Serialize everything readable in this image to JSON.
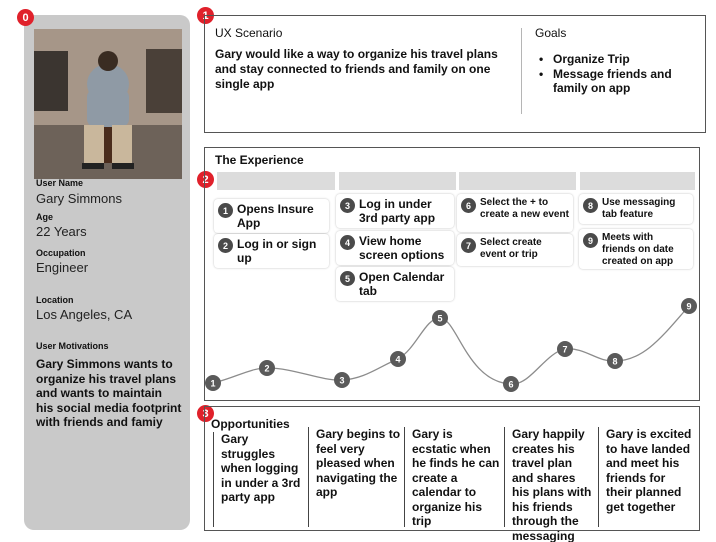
{
  "badges": {
    "persona": "0",
    "scenario": "1",
    "experience": "2",
    "opportunities": "3"
  },
  "persona": {
    "photo_alt": "persona-photo",
    "user_name_label": "User Name",
    "user_name": "Gary Simmons",
    "age_label": "Age",
    "age": "22 Years",
    "occupation_label": "Occupation",
    "occupation": "Engineer",
    "location_label": "Location",
    "location": "Los Angeles, CA",
    "motivations_label": "User Motivations",
    "motivations": "Gary Simmons wants to organize his travel plans and wants to maintain his social media footprint with friends and famiy"
  },
  "scenario": {
    "title": "UX Scenario",
    "text": "Gary would like a way to organize his travel plans and stay connected to friends and family on one single app",
    "goals_title": "Goals",
    "goals": [
      "Organize Trip",
      "Message friends and family on app"
    ]
  },
  "experience": {
    "title": "The Experience",
    "steps": [
      {
        "num": "1",
        "text": "Opens Insure App"
      },
      {
        "num": "2",
        "text": "Log in or sign up"
      },
      {
        "num": "3",
        "text": "Log in under 3rd party app"
      },
      {
        "num": "4",
        "text": "View home screen options"
      },
      {
        "num": "5",
        "text": "Open Calendar tab"
      },
      {
        "num": "6",
        "text": "Select the + to create a new event"
      },
      {
        "num": "7",
        "text": "Select create event or trip"
      },
      {
        "num": "8",
        "text": "Use messaging tab feature"
      },
      {
        "num": "9",
        "text": "Meets with friends on date created on app"
      }
    ],
    "journey_points": [
      "1",
      "2",
      "3",
      "4",
      "5",
      "6",
      "7",
      "8",
      "9"
    ]
  },
  "opportunities": {
    "title": "Opportunities",
    "items": [
      "Gary struggles when logging in under a 3rd party app",
      "Gary begins to feel very pleased when navigating the app",
      "Gary is ecstatic when he finds he can create a calendar to organize his trip",
      "Gary happily creates his travel plan and shares his plans with his friends through the messaging tab",
      "Gary is excited to have landed and meet his friends for their planned get together"
    ]
  },
  "colors": {
    "badge": "#e0212b",
    "panel": "#c9c9c9",
    "node": "#4a4a4a",
    "lane": "#dcdcdc"
  }
}
